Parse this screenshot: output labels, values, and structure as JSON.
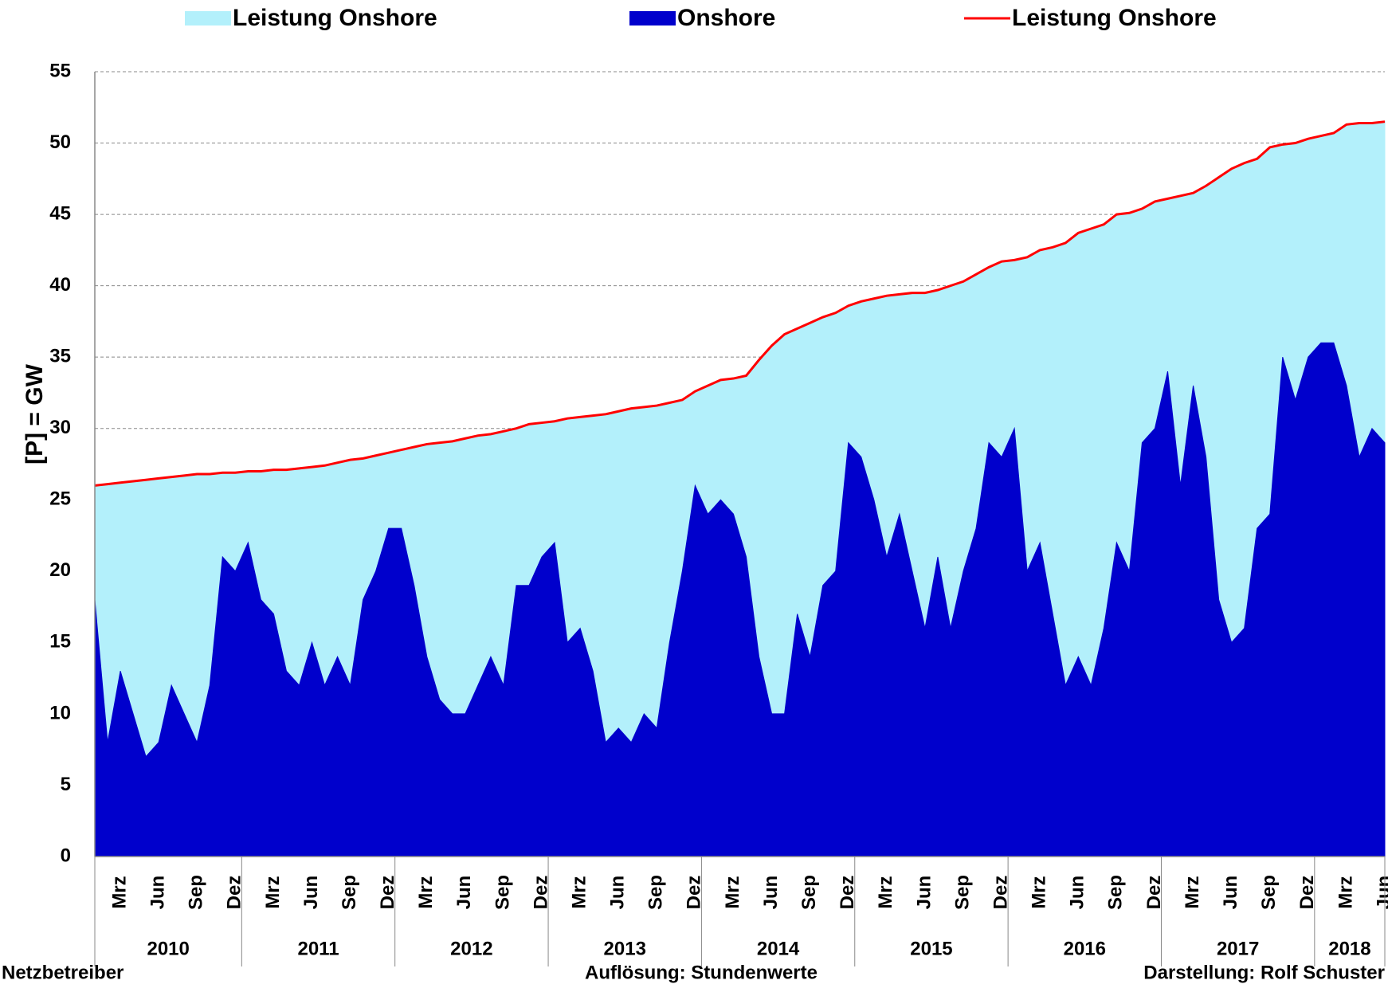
{
  "chart_data": {
    "type": "area",
    "y_label": "[P]  =  GW",
    "footer_left": "Netzbetreiber",
    "footer_center": "Auflösung: Stundenwerte",
    "footer_right": "Darstellung: Rolf Schuster",
    "categories": [
      null,
      null,
      "Mrz",
      null,
      null,
      "Jun",
      null,
      null,
      "Sep",
      null,
      null,
      "Dez",
      null,
      null,
      "Mrz",
      null,
      null,
      "Jun",
      null,
      null,
      "Sep",
      null,
      null,
      "Dez",
      null,
      null,
      "Mrz",
      null,
      null,
      "Jun",
      null,
      null,
      "Sep",
      null,
      null,
      "Dez",
      null,
      null,
      "Mrz",
      null,
      null,
      "Jun",
      null,
      null,
      "Sep",
      null,
      null,
      "Dez",
      null,
      null,
      "Mrz",
      null,
      null,
      "Jun",
      null,
      null,
      "Sep",
      null,
      null,
      "Dez",
      null,
      null,
      "Mrz",
      null,
      null,
      "Jun",
      null,
      null,
      "Sep",
      null,
      null,
      "Dez",
      null,
      null,
      "Mrz",
      null,
      null,
      "Jun",
      null,
      null,
      "Sep",
      null,
      null,
      "Dez",
      null,
      null,
      "Mrz",
      null,
      null,
      "Jun",
      null,
      null,
      "Sep",
      null,
      null,
      "Dez",
      null,
      null,
      "Mrz",
      null,
      null,
      "Jun"
    ],
    "years": [
      "2010",
      "2011",
      "2012",
      "2013",
      "2014",
      "2015",
      "2016",
      "2017",
      "2018"
    ],
    "ylim": [
      0,
      55
    ],
    "yticks": [
      0,
      5,
      10,
      15,
      20,
      25,
      30,
      35,
      40,
      45,
      50,
      55
    ],
    "grid": true,
    "series": [
      {
        "name": "Leistung Onshore",
        "kind": "area",
        "color": "#b3f0fb",
        "values": [
          26.0,
          26.1,
          26.2,
          26.3,
          26.4,
          26.5,
          26.6,
          26.7,
          26.8,
          26.8,
          26.9,
          26.9,
          27.0,
          27.0,
          27.1,
          27.1,
          27.2,
          27.3,
          27.4,
          27.6,
          27.8,
          27.9,
          28.1,
          28.3,
          28.5,
          28.7,
          28.9,
          29.0,
          29.1,
          29.3,
          29.5,
          29.6,
          29.8,
          30.0,
          30.3,
          30.4,
          30.5,
          30.7,
          30.8,
          30.9,
          31.0,
          31.2,
          31.4,
          31.5,
          31.6,
          31.8,
          32.0,
          32.6,
          33.0,
          33.4,
          33.5,
          33.7,
          34.8,
          35.8,
          36.6,
          37.0,
          37.4,
          37.8,
          38.1,
          38.6,
          38.9,
          39.1,
          39.3,
          39.4,
          39.5,
          39.5,
          39.7,
          40.0,
          40.3,
          40.8,
          41.3,
          41.7,
          41.8,
          42.0,
          42.5,
          42.7,
          43.0,
          43.7,
          44.0,
          44.3,
          45.0,
          45.1,
          45.4,
          45.9,
          46.1,
          46.3,
          46.5,
          47.0,
          47.6,
          48.2,
          48.6,
          48.9,
          49.7,
          49.9,
          50.0,
          50.3,
          50.5,
          50.7,
          51.3,
          51.4,
          51.4,
          51.5
        ]
      },
      {
        "name": "Onshore",
        "kind": "area",
        "color": "#0000cc",
        "values": [
          18,
          8,
          13,
          10,
          7,
          8,
          12,
          10,
          8,
          12,
          21,
          20,
          22,
          18,
          17,
          13,
          12,
          15,
          12,
          14,
          12,
          18,
          20,
          23,
          23,
          19,
          14,
          11,
          10,
          10,
          12,
          14,
          12,
          19,
          19,
          21,
          22,
          15,
          16,
          13,
          8,
          9,
          8,
          10,
          9,
          15,
          20,
          26,
          24,
          25,
          24,
          21,
          14,
          10,
          10,
          17,
          14,
          19,
          20,
          29,
          28,
          25,
          21,
          24,
          20,
          16,
          21,
          16,
          20,
          23,
          29,
          28,
          30,
          20,
          22,
          17,
          12,
          14,
          12,
          16,
          22,
          20,
          29,
          30,
          34,
          26,
          33,
          28,
          18,
          15,
          16,
          23,
          24,
          35,
          32,
          35,
          36,
          36,
          33,
          28,
          30,
          29
        ]
      },
      {
        "name": "Leistung Onshore",
        "kind": "line",
        "color": "#ff0000",
        "values": [
          26.0,
          26.1,
          26.2,
          26.3,
          26.4,
          26.5,
          26.6,
          26.7,
          26.8,
          26.8,
          26.9,
          26.9,
          27.0,
          27.0,
          27.1,
          27.1,
          27.2,
          27.3,
          27.4,
          27.6,
          27.8,
          27.9,
          28.1,
          28.3,
          28.5,
          28.7,
          28.9,
          29.0,
          29.1,
          29.3,
          29.5,
          29.6,
          29.8,
          30.0,
          30.3,
          30.4,
          30.5,
          30.7,
          30.8,
          30.9,
          31.0,
          31.2,
          31.4,
          31.5,
          31.6,
          31.8,
          32.0,
          32.6,
          33.0,
          33.4,
          33.5,
          33.7,
          34.8,
          35.8,
          36.6,
          37.0,
          37.4,
          37.8,
          38.1,
          38.6,
          38.9,
          39.1,
          39.3,
          39.4,
          39.5,
          39.5,
          39.7,
          40.0,
          40.3,
          40.8,
          41.3,
          41.7,
          41.8,
          42.0,
          42.5,
          42.7,
          43.0,
          43.7,
          44.0,
          44.3,
          45.0,
          45.1,
          45.4,
          45.9,
          46.1,
          46.3,
          46.5,
          47.0,
          47.6,
          48.2,
          48.6,
          48.9,
          49.7,
          49.9,
          50.0,
          50.3,
          50.5,
          50.7,
          51.3,
          51.4,
          51.4,
          51.5
        ]
      }
    ]
  }
}
